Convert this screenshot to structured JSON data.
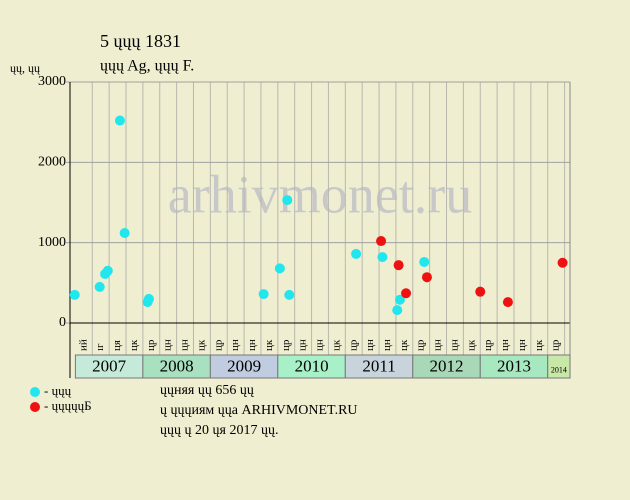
{
  "chart_data": {
    "type": "scatter",
    "title": "5 ųųų 1831",
    "subtitle": "ųųų Ag, ųųų F.",
    "y_label": "ųų, ųų",
    "watermark": "arhivmonet.ru",
    "xlim": [
      2006.92,
      2014.33
    ],
    "xticks": [
      2007,
      2008,
      2009,
      2010,
      2011,
      2012,
      2013,
      2014
    ],
    "band_colors": [
      "#c6ead9",
      "#a8e0c0",
      "#c0cce0",
      "#a8f0c8",
      "#c8d4dc",
      "#a8d8b8",
      "#a8e8c0",
      "#c8e8a8"
    ],
    "quarter_labels": [
      "ий",
      "ıг",
      "ця",
      "цк",
      "цр",
      "цн",
      "цн",
      "цк",
      "цр",
      "цн",
      "цн",
      "цк",
      "цр",
      "цн",
      "цн",
      "цк",
      "цр",
      "цн",
      "цн",
      "цк",
      "цр",
      "цн",
      "цн",
      "цк",
      "цр",
      "цн",
      "цн",
      "цк",
      "цр"
    ],
    "ylim": [
      0,
      3000
    ],
    "yticks": [
      0,
      1000,
      2000,
      3000
    ],
    "grid": true,
    "series": [
      {
        "name": "- ųųų",
        "color": "#22e6ee",
        "x": [
          2006.99,
          2007.36,
          2007.44,
          2007.48,
          2007.66,
          2007.73,
          2008.07,
          2008.09,
          2009.79,
          2010.03,
          2010.14,
          2010.17,
          2011.16,
          2011.55,
          2011.77,
          2011.81,
          2012.17
        ],
        "values": [
          350,
          450,
          610,
          650,
          2520,
          1120,
          260,
          300,
          360,
          680,
          1530,
          350,
          860,
          820,
          160,
          290,
          760
        ]
      },
      {
        "name": "- ųųųųųБ",
        "color": "#ee1111",
        "x": [
          2011.53,
          2011.79,
          2011.9,
          2012.21,
          2013.0,
          2013.41,
          2014.22
        ],
        "values": [
          1020,
          720,
          370,
          570,
          390,
          260,
          750
        ]
      }
    ],
    "notes": [
      "ųųняя ųų 656 ųų",
      "ų ųųųиям ųųа ARHIVMONET.RU",
      "ųųų ų 20 ųя 2017 ųų."
    ]
  }
}
